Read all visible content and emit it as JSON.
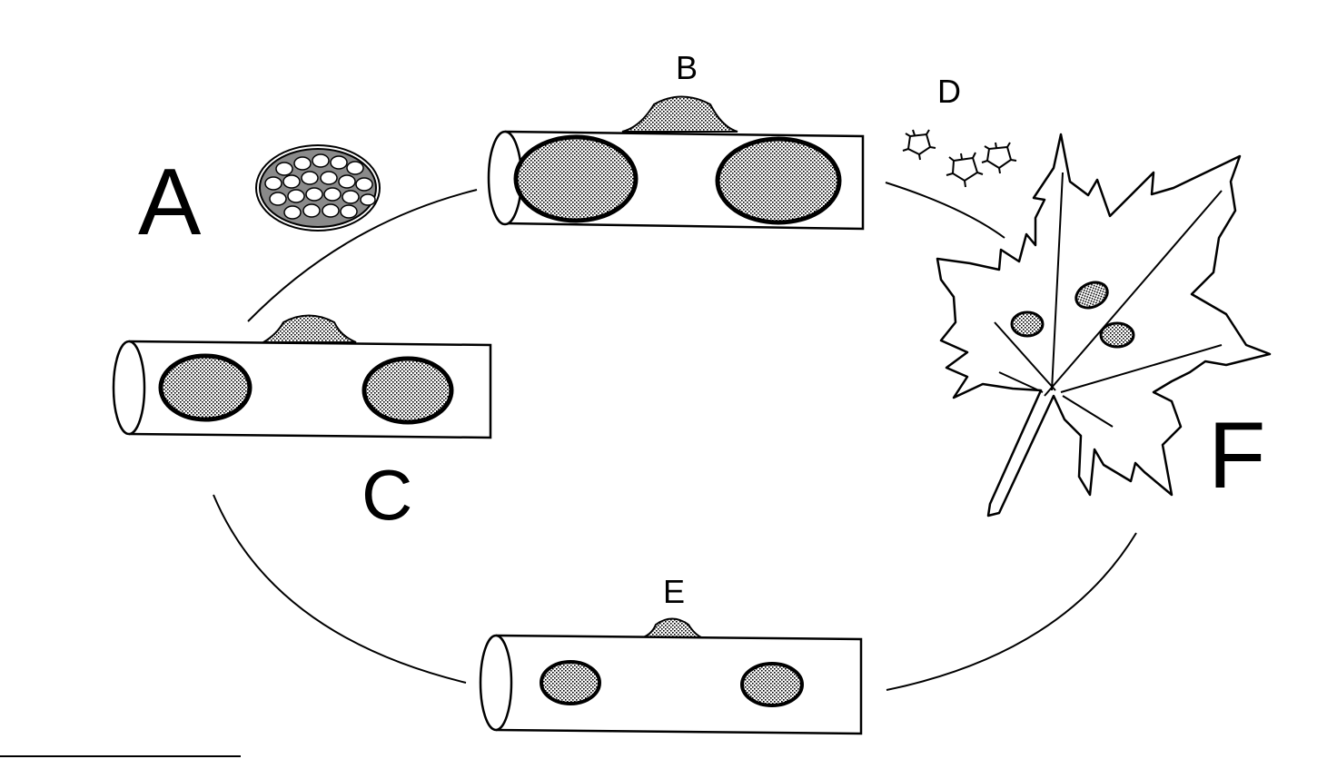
{
  "labels": {
    "a": "A",
    "b": "B",
    "c": "C",
    "d": "D",
    "e": "E",
    "f": "F"
  },
  "colors": {
    "ink": "#000000",
    "stipple": "#c8c8c8",
    "paper": "#ffffff"
  },
  "icons": {
    "egg_mass": "egg-cluster-icon",
    "mites": "mite-icon",
    "leaf": "maple-leaf-icon",
    "twig": "twig-icon"
  }
}
